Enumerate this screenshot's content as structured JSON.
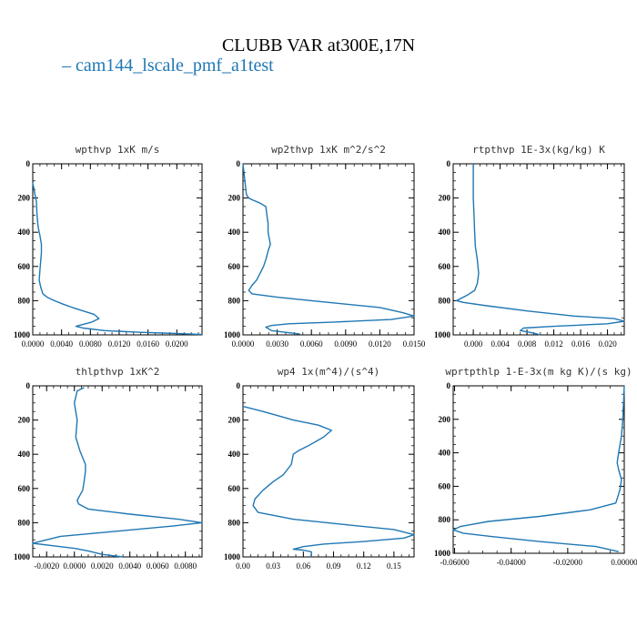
{
  "figure": {
    "title": "CLUBB VAR at300E,17N",
    "legend": [
      {
        "name": "cam144_lscale_pmf_a1test",
        "color": "#1f77b4"
      }
    ]
  },
  "chart_data": [
    {
      "type": "line",
      "title": "wpthvp  1xK m/s",
      "xlim": [
        0.0,
        0.0235
      ],
      "ylim": [
        1000,
        0
      ],
      "xticks": [
        "0.0000",
        "0.0040",
        "0.0080",
        "0.0120",
        "0.0160",
        "0.0200"
      ],
      "xtick_values": [
        0.0,
        0.004,
        0.008,
        0.012,
        0.016,
        0.02
      ],
      "yticks": [
        "0",
        "200",
        "400",
        "600",
        "800",
        "1000"
      ],
      "ytick_values": [
        0,
        200,
        400,
        600,
        800,
        1000
      ],
      "series": [
        {
          "x": [
            0.0,
            0.0003,
            0.0005,
            0.0006,
            0.0007,
            0.0008,
            0.001,
            0.0012,
            0.0012,
            0.0011,
            0.001,
            0.0009,
            0.0011,
            0.0014,
            0.002,
            0.003,
            0.0042,
            0.0055,
            0.007,
            0.0085,
            0.0092,
            0.0082,
            0.006,
            0.007,
            0.01,
            0.015,
            0.02,
            0.0235
          ],
          "y": [
            110,
            180,
            220,
            300,
            350,
            380,
            420,
            470,
            520,
            570,
            620,
            680,
            720,
            760,
            780,
            800,
            820,
            840,
            860,
            880,
            905,
            925,
            950,
            960,
            975,
            985,
            992,
            998
          ]
        }
      ]
    },
    {
      "type": "line",
      "title": "wp2thvp  1xK m^2/s^2",
      "xlim": [
        0.0,
        0.015
      ],
      "ylim": [
        1000,
        0
      ],
      "xticks": [
        "0.0000",
        "0.0030",
        "0.0060",
        "0.0090",
        "0.0120",
        "0.0150"
      ],
      "xtick_values": [
        0.0,
        0.003,
        0.006,
        0.009,
        0.012,
        0.015
      ],
      "yticks": [
        "0",
        "200",
        "400",
        "600",
        "800",
        "1000"
      ],
      "ytick_values": [
        0,
        200,
        400,
        600,
        800,
        1000
      ],
      "series": [
        {
          "x": [
            0.0,
            0.0003,
            0.0005,
            0.0008,
            0.0015,
            0.002,
            0.0021,
            0.0022,
            0.0022,
            0.0024,
            0.0022,
            0.002,
            0.0018,
            0.0015,
            0.0012,
            0.0008,
            0.0005,
            0.0008,
            0.003,
            0.006,
            0.009,
            0.012,
            0.014,
            0.015,
            0.013,
            0.008,
            0.004,
            0.0025,
            0.002,
            0.0025,
            0.005
          ],
          "y": [
            0,
            180,
            200,
            210,
            230,
            250,
            300,
            350,
            400,
            470,
            510,
            560,
            600,
            640,
            680,
            710,
            740,
            760,
            780,
            800,
            820,
            840,
            870,
            890,
            910,
            925,
            935,
            945,
            955,
            975,
            995
          ]
        }
      ]
    },
    {
      "type": "line",
      "title": "rtpthvp  1E-3x(kg/kg) K",
      "xlim": [
        -0.003,
        0.0225
      ],
      "ylim": [
        1000,
        0
      ],
      "xticks": [
        "0.000",
        "0.004",
        "0.008",
        "0.012",
        "0.016",
        "0.020"
      ],
      "xtick_values": [
        0.0,
        0.004,
        0.008,
        0.012,
        0.016,
        0.02
      ],
      "yticks": [
        "0",
        "200",
        "400",
        "600",
        "800",
        "1000"
      ],
      "ytick_values": [
        0,
        200,
        400,
        600,
        800,
        1000
      ],
      "series": [
        {
          "x": [
            0.0,
            0.0,
            0.0001,
            0.0002,
            0.0003,
            0.0006,
            0.0008,
            0.0006,
            0.0002,
            -0.001,
            -0.0025,
            -0.0015,
            0.002,
            0.008,
            0.015,
            0.021,
            0.0225,
            0.02,
            0.012,
            0.0075,
            0.007,
            0.009,
            0.01
          ],
          "y": [
            0,
            200,
            300,
            400,
            480,
            560,
            640,
            700,
            740,
            770,
            800,
            810,
            830,
            860,
            890,
            905,
            920,
            935,
            950,
            960,
            975,
            990,
            1000
          ]
        }
      ]
    },
    {
      "type": "line",
      "title": "thlpthvp  1xK^2",
      "xlim": [
        -0.003,
        0.0092
      ],
      "ylim": [
        1000,
        0
      ],
      "xticks": [
        "-0.0020",
        "0.0000",
        "0.0020",
        "0.0040",
        "0.0060",
        "0.0080"
      ],
      "xtick_values": [
        -0.002,
        0.0,
        0.002,
        0.004,
        0.006,
        0.008
      ],
      "yticks": [
        "0",
        "200",
        "400",
        "600",
        "800",
        "1000"
      ],
      "ytick_values": [
        0,
        200,
        400,
        600,
        800,
        1000
      ],
      "series": [
        {
          "x": [
            0.0007,
            0.0002,
            0.0,
            0.0002,
            0.0001,
            0.0004,
            0.0006,
            0.0008,
            0.0008,
            0.0007,
            0.0006,
            0.0004,
            0.0002,
            0.0003,
            0.001,
            0.004,
            0.0075,
            0.0092,
            0.007,
            0.003,
            -0.001,
            -0.0025,
            -0.003,
            -0.0015,
            0.0,
            0.001,
            0.002,
            0.0035
          ],
          "y": [
            10,
            30,
            100,
            200,
            300,
            380,
            420,
            460,
            500,
            560,
            610,
            640,
            670,
            690,
            720,
            750,
            780,
            800,
            820,
            850,
            880,
            910,
            920,
            935,
            950,
            965,
            985,
            1000
          ]
        }
      ]
    },
    {
      "type": "line",
      "title": "wp4  1x(m^4)/(s^4)",
      "xlim": [
        0.0,
        0.17
      ],
      "ylim": [
        1000,
        0
      ],
      "xticks": [
        "0.00",
        "0.03",
        "0.06",
        "0.09",
        "0.12",
        "0.15"
      ],
      "xtick_values": [
        0.0,
        0.03,
        0.06,
        0.09,
        0.12,
        0.15
      ],
      "yticks": [
        "0",
        "200",
        "400",
        "600",
        "800",
        "1000"
      ],
      "ytick_values": [
        0,
        200,
        400,
        600,
        800,
        1000
      ],
      "series": [
        {
          "x": [
            0.0,
            0.02,
            0.05,
            0.075,
            0.088,
            0.08,
            0.065,
            0.055,
            0.05,
            0.048,
            0.04,
            0.03,
            0.02,
            0.012,
            0.01,
            0.015,
            0.05,
            0.1,
            0.15,
            0.17,
            0.16,
            0.12,
            0.08,
            0.06,
            0.05,
            0.06,
            0.068,
            0.068
          ],
          "y": [
            120,
            150,
            200,
            230,
            260,
            300,
            350,
            380,
            400,
            460,
            520,
            560,
            610,
            660,
            700,
            740,
            780,
            810,
            840,
            870,
            890,
            910,
            925,
            940,
            955,
            960,
            970,
            1000
          ]
        }
      ]
    },
    {
      "type": "line",
      "title": "wprtpthlp  1-E-3x(m kg K)/(s kg)",
      "xlim": [
        -0.0605,
        0.0
      ],
      "ylim": [
        1000,
        0
      ],
      "xticks": [
        "-0.06000",
        "-0.04000",
        "-0.02000",
        "0.00000"
      ],
      "xtick_values": [
        -0.06,
        -0.04,
        -0.02,
        0.0
      ],
      "yticks": [
        "0",
        "200",
        "400",
        "600",
        "800",
        "1000"
      ],
      "ytick_values": [
        0,
        200,
        400,
        600,
        800,
        1000
      ],
      "series": [
        {
          "x": [
            0.0,
            -0.0005,
            -0.001,
            -0.002,
            -0.0025,
            -0.002,
            -0.001,
            -0.0015,
            -0.003,
            -0.012,
            -0.03,
            -0.048,
            -0.058,
            -0.0605,
            -0.057,
            -0.047,
            -0.03,
            -0.01,
            -0.002
          ],
          "y": [
            0,
            200,
            300,
            400,
            460,
            500,
            560,
            620,
            700,
            740,
            780,
            810,
            840,
            860,
            880,
            900,
            930,
            960,
            990
          ]
        }
      ]
    }
  ]
}
